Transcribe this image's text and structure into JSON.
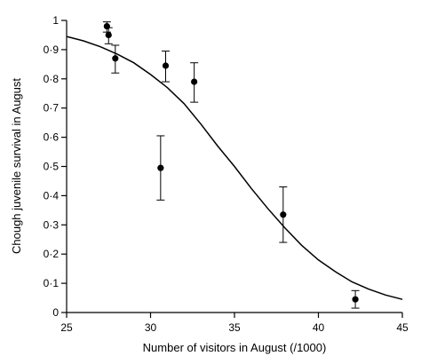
{
  "chart_data": {
    "type": "scatter",
    "xlabel": "Number of visitors in August (/1000)",
    "ylabel": "Chough juvenile survival in August",
    "xlim": [
      25,
      45
    ],
    "ylim": [
      0,
      1
    ],
    "x_ticks": [
      25,
      30,
      35,
      40,
      45
    ],
    "y_ticks": [
      0,
      0.1,
      0.2,
      0.3,
      0.4,
      0.5,
      0.6,
      0.7,
      0.8,
      0.9,
      1
    ],
    "y_tick_labels": [
      "0",
      "0·1",
      "0·2",
      "0·3",
      "0·4",
      "0·5",
      "0·6",
      "0·7",
      "0·8",
      "0·9",
      "1"
    ],
    "x_tick_labels": [
      "25",
      "30",
      "35",
      "40",
      "45"
    ],
    "grid": false,
    "points": [
      {
        "x": 27.4,
        "y": 0.98,
        "low": 0.96,
        "high": 0.995
      },
      {
        "x": 27.5,
        "y": 0.95,
        "low": 0.92,
        "high": 0.975
      },
      {
        "x": 27.9,
        "y": 0.87,
        "low": 0.82,
        "high": 0.915
      },
      {
        "x": 30.6,
        "y": 0.495,
        "low": 0.385,
        "high": 0.605
      },
      {
        "x": 30.9,
        "y": 0.845,
        "low": 0.79,
        "high": 0.895
      },
      {
        "x": 32.6,
        "y": 0.79,
        "low": 0.72,
        "high": 0.855
      },
      {
        "x": 37.9,
        "y": 0.335,
        "low": 0.24,
        "high": 0.43
      },
      {
        "x": 42.2,
        "y": 0.045,
        "low": 0.015,
        "high": 0.075
      }
    ],
    "fit_curve": {
      "type": "logistic",
      "x": [
        25,
        26,
        27,
        28,
        29,
        30,
        31,
        32,
        33,
        34,
        35,
        36,
        37,
        38,
        39,
        40,
        41,
        42,
        43,
        44,
        45
      ],
      "y": [
        0.945,
        0.93,
        0.91,
        0.885,
        0.855,
        0.815,
        0.77,
        0.715,
        0.645,
        0.57,
        0.5,
        0.425,
        0.355,
        0.29,
        0.23,
        0.18,
        0.14,
        0.105,
        0.08,
        0.06,
        0.045
      ]
    }
  }
}
